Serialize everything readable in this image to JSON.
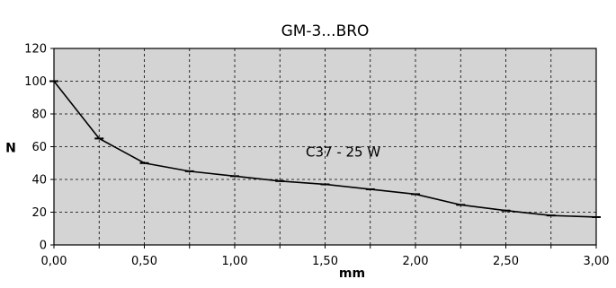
{
  "chart_data": {
    "type": "line",
    "title": "GM-3...BRO",
    "xlabel": "mm",
    "ylabel": "N",
    "x": [
      0.0,
      0.25,
      0.5,
      0.75,
      1.0,
      1.25,
      1.5,
      1.75,
      2.0,
      2.25,
      2.5,
      2.75,
      3.0
    ],
    "series": [
      {
        "name": "",
        "values": [
          100,
          65,
          50,
          45,
          42,
          39,
          37,
          34,
          31,
          24.5,
          21,
          18,
          17
        ]
      }
    ],
    "xlim": [
      0,
      3
    ],
    "ylim": [
      0,
      120
    ],
    "xticks": [
      "0,00",
      "0,50",
      "1,00",
      "1,50",
      "2,00",
      "2,50",
      "3,00"
    ],
    "yticks": [
      "0",
      "20",
      "40",
      "60",
      "80",
      "100",
      "120"
    ],
    "grid": true,
    "annotation": "C37 - 25 W",
    "colors": {
      "plot_background": "#d4d4d4",
      "line": "#000000",
      "grid": "#000000"
    }
  }
}
